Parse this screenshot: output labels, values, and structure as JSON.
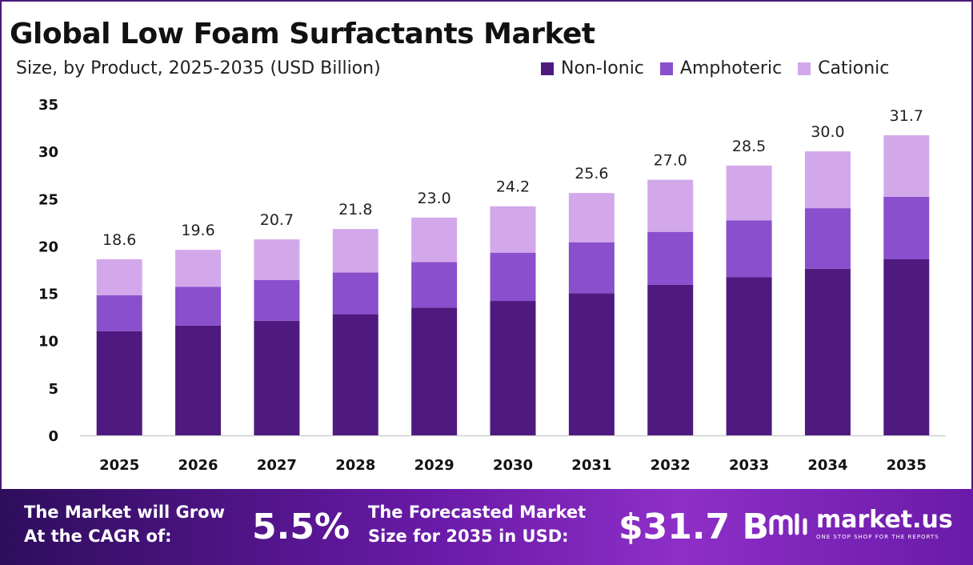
{
  "chart_data": {
    "type": "bar",
    "stacked": true,
    "title": "Global Low Foam Surfactants Market",
    "subtitle": "Size, by Product, 2025-2035 (USD Billion)",
    "categories": [
      "2025",
      "2026",
      "2027",
      "2028",
      "2029",
      "2030",
      "2031",
      "2032",
      "2033",
      "2034",
      "2035"
    ],
    "series": [
      {
        "name": "Non-Ionic",
        "color": "#4e1a7f",
        "values": [
          11.0,
          11.6,
          12.1,
          12.8,
          13.5,
          14.2,
          15.0,
          15.9,
          16.7,
          17.6,
          18.6
        ]
      },
      {
        "name": "Amphoteric",
        "color": "#8a4fcc",
        "values": [
          3.8,
          4.1,
          4.3,
          4.4,
          4.8,
          5.1,
          5.4,
          5.6,
          6.0,
          6.4,
          6.6
        ]
      },
      {
        "name": "Cationic",
        "color": "#d3a8eb",
        "values": [
          3.8,
          3.9,
          4.3,
          4.6,
          4.7,
          4.9,
          5.2,
          5.5,
          5.8,
          6.0,
          6.5
        ]
      }
    ],
    "totals": [
      "18.6",
      "19.6",
      "20.7",
      "21.8",
      "23.0",
      "24.2",
      "25.6",
      "27.0",
      "28.5",
      "30.0",
      "31.7"
    ],
    "yticks": [
      "0",
      "5",
      "10",
      "15",
      "20",
      "25",
      "30",
      "35"
    ],
    "ylim": [
      0,
      35
    ],
    "legend_position": "top-right"
  },
  "footer": {
    "cagr_label_1": "The Market will Grow",
    "cagr_label_2": "At the CAGR of:",
    "cagr_value": "5.5%",
    "forecast_label_1": "The Forecasted Market",
    "forecast_label_2": "Size for 2035 in USD:",
    "forecast_value": "$31.7 B",
    "brand_name": "market.us",
    "brand_tagline": "ONE STOP SHOP FOR THE REPORTS"
  }
}
